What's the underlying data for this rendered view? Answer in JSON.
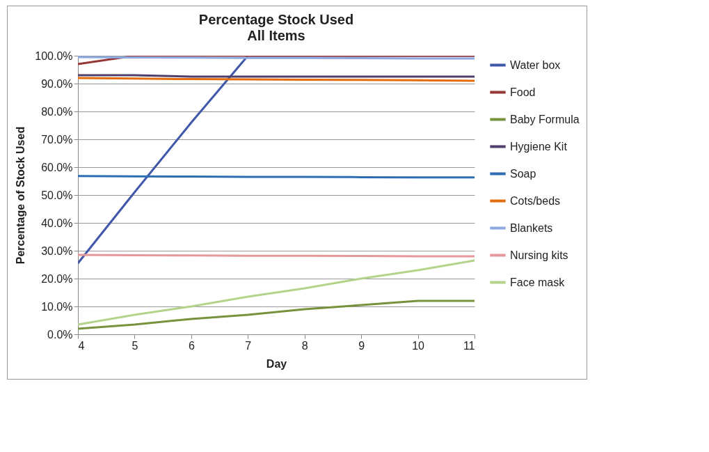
{
  "chart_data": {
    "type": "line",
    "title": "Percentage Stock Used",
    "subtitle": "All Items",
    "xlabel": "Day",
    "ylabel": "Percentage of Stock Used",
    "x": [
      4,
      5,
      6,
      7,
      8,
      9,
      10,
      11
    ],
    "series": [
      {
        "name": "Water box",
        "color": "#3f57a8",
        "values": [
          25.5,
          51,
          76,
          100,
          100,
          100,
          100,
          100
        ]
      },
      {
        "name": "Food",
        "color": "#953735",
        "values": [
          97,
          100,
          100,
          100,
          100,
          100,
          100,
          100
        ]
      },
      {
        "name": "Baby Formula",
        "color": "#76923c",
        "values": [
          2,
          3.5,
          5.5,
          7,
          9,
          10.5,
          12,
          12
        ]
      },
      {
        "name": "Hygiene Kit",
        "color": "#4f3f6b",
        "values": [
          93,
          93,
          92.5,
          92.5,
          92.5,
          92.5,
          92.5,
          92.5
        ]
      },
      {
        "name": "Soap",
        "color": "#2e6db4",
        "values": [
          56.8,
          56.7,
          56.6,
          56.5,
          56.5,
          56.4,
          56.3,
          56.3
        ]
      },
      {
        "name": "Cots/beds",
        "color": "#e46c0a",
        "values": [
          92,
          91.8,
          91.6,
          91.5,
          91.4,
          91.3,
          91.2,
          91
        ]
      },
      {
        "name": "Blankets",
        "color": "#8ea9e0",
        "values": [
          99.5,
          99.4,
          99.3,
          99.2,
          99.2,
          99.1,
          99,
          99
        ]
      },
      {
        "name": "Nursing kits",
        "color": "#e6999a",
        "values": [
          28.5,
          28.4,
          28.3,
          28.2,
          28.2,
          28.1,
          28,
          28
        ]
      },
      {
        "name": "Face mask",
        "color": "#b3d38a",
        "values": [
          3.5,
          7,
          10,
          13.5,
          16.5,
          20,
          23,
          26.5
        ]
      }
    ],
    "xlim": [
      4,
      11
    ],
    "xticks": [
      4,
      5,
      6,
      7,
      8,
      9,
      10,
      11
    ],
    "ylim": [
      0,
      100
    ],
    "yticks": [
      {
        "value": 0,
        "label": "0.0%"
      },
      {
        "value": 10,
        "label": "10.0%"
      },
      {
        "value": 20,
        "label": "20.0%"
      },
      {
        "value": 30,
        "label": "30.0%"
      },
      {
        "value": 40,
        "label": "40.0%"
      },
      {
        "value": 50,
        "label": "50.0%"
      },
      {
        "value": 60,
        "label": "60.0%"
      },
      {
        "value": 70,
        "label": "70.0%"
      },
      {
        "value": 80,
        "label": "80.0%"
      },
      {
        "value": 90,
        "label": "90.0%"
      },
      {
        "value": 100,
        "label": "100.0%"
      }
    ],
    "grid": "y",
    "legend": "right",
    "marker": "none",
    "line_style": "solid"
  }
}
